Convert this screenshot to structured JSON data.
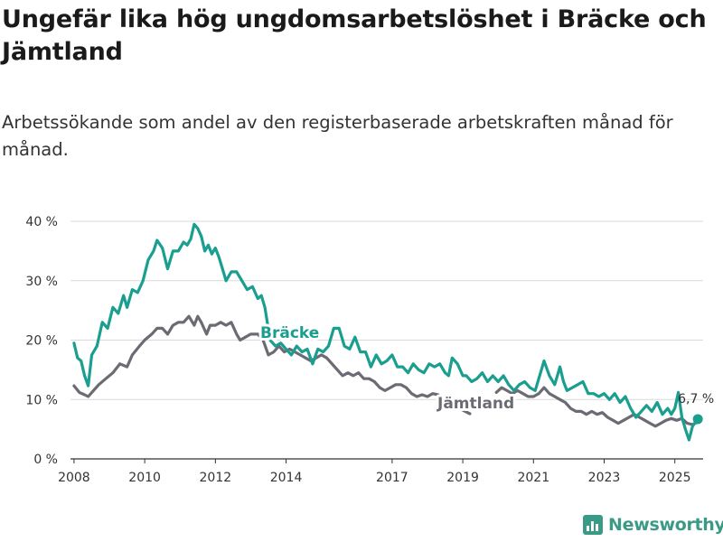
{
  "title": "Ungefär lika hög ungdomsarbetslöshet i Bräcke och Jämtland",
  "subtitle": "Arbetssökande som andel av den registerbaserade arbetskraften månad för månad.",
  "brand": "Newsworthy",
  "colors": {
    "bracke": "#1a9e8f",
    "jamtland": "#6b6b73",
    "grid": "#d9d9d9",
    "axis": "#333333"
  },
  "chart_data": {
    "type": "line",
    "ylim": [
      0,
      40
    ],
    "xlim": [
      2007.9,
      2025.8
    ],
    "y_ticks": [
      0,
      10,
      20,
      30,
      40
    ],
    "y_tick_labels": [
      "0 %",
      "10 %",
      "20 %",
      "30 %",
      "40 %"
    ],
    "x_ticks": [
      2008,
      2010,
      2012,
      2014,
      2017,
      2019,
      2021,
      2023,
      2025
    ],
    "x_tick_labels": [
      "2008",
      "2010",
      "2012",
      "2014",
      "2017",
      "2019",
      "2021",
      "2023",
      "2025"
    ],
    "series": [
      {
        "name": "Bräcke",
        "label": "Bräcke",
        "end_label": "6,7 %",
        "points": [
          [
            2008.0,
            19.5
          ],
          [
            2008.1,
            17
          ],
          [
            2008.2,
            16.5
          ],
          [
            2008.3,
            14
          ],
          [
            2008.4,
            12.3
          ],
          [
            2008.5,
            17.5
          ],
          [
            2008.65,
            19
          ],
          [
            2008.8,
            23
          ],
          [
            2008.95,
            22
          ],
          [
            2009.1,
            25.5
          ],
          [
            2009.25,
            24.5
          ],
          [
            2009.4,
            27.5
          ],
          [
            2009.5,
            25.5
          ],
          [
            2009.65,
            28.5
          ],
          [
            2009.8,
            28
          ],
          [
            2009.95,
            30
          ],
          [
            2010.1,
            33.5
          ],
          [
            2010.25,
            35
          ],
          [
            2010.35,
            36.8
          ],
          [
            2010.5,
            35.5
          ],
          [
            2010.65,
            32
          ],
          [
            2010.8,
            35
          ],
          [
            2010.95,
            35
          ],
          [
            2011.1,
            36.5
          ],
          [
            2011.2,
            36
          ],
          [
            2011.3,
            37
          ],
          [
            2011.4,
            39.5
          ],
          [
            2011.5,
            38.8
          ],
          [
            2011.6,
            37.5
          ],
          [
            2011.7,
            35
          ],
          [
            2011.8,
            36
          ],
          [
            2011.9,
            34.5
          ],
          [
            2012.0,
            35.5
          ],
          [
            2012.1,
            34
          ],
          [
            2012.2,
            32
          ],
          [
            2012.3,
            30
          ],
          [
            2012.45,
            31.5
          ],
          [
            2012.6,
            31.5
          ],
          [
            2012.75,
            30
          ],
          [
            2012.9,
            28.5
          ],
          [
            2013.05,
            29
          ],
          [
            2013.2,
            27
          ],
          [
            2013.3,
            27.5
          ],
          [
            2013.4,
            25.5
          ],
          [
            2013.55,
            20
          ],
          [
            2013.7,
            19
          ],
          [
            2013.85,
            19.5
          ],
          [
            2014.0,
            18.5
          ],
          [
            2014.15,
            17.5
          ],
          [
            2014.3,
            19
          ],
          [
            2014.45,
            18
          ],
          [
            2014.6,
            18.5
          ],
          [
            2014.75,
            16
          ],
          [
            2014.9,
            18.5
          ],
          [
            2015.05,
            18
          ],
          [
            2015.2,
            19
          ],
          [
            2015.35,
            22
          ],
          [
            2015.5,
            22
          ],
          [
            2015.65,
            19
          ],
          [
            2015.8,
            18.5
          ],
          [
            2015.95,
            20.5
          ],
          [
            2016.1,
            18
          ],
          [
            2016.25,
            18
          ],
          [
            2016.4,
            15.5
          ],
          [
            2016.55,
            17.5
          ],
          [
            2016.7,
            16
          ],
          [
            2016.85,
            16.5
          ],
          [
            2017.0,
            17.5
          ],
          [
            2017.15,
            15.5
          ],
          [
            2017.3,
            15.5
          ],
          [
            2017.45,
            14.5
          ],
          [
            2017.6,
            16
          ],
          [
            2017.75,
            15
          ],
          [
            2017.9,
            14.5
          ],
          [
            2018.05,
            16
          ],
          [
            2018.2,
            15.5
          ],
          [
            2018.35,
            16
          ],
          [
            2018.5,
            14.5
          ],
          [
            2018.6,
            14
          ],
          [
            2018.7,
            17
          ],
          [
            2018.85,
            16
          ],
          [
            2019.0,
            14
          ],
          [
            2019.1,
            14
          ],
          [
            2019.25,
            13
          ],
          [
            2019.4,
            13.5
          ],
          [
            2019.55,
            14.5
          ],
          [
            2019.7,
            13
          ],
          [
            2019.85,
            14
          ],
          [
            2020.0,
            13
          ],
          [
            2020.15,
            14
          ],
          [
            2020.3,
            12.5
          ],
          [
            2020.45,
            11.5
          ],
          [
            2020.6,
            12.5
          ],
          [
            2020.75,
            13
          ],
          [
            2020.9,
            12
          ],
          [
            2021.05,
            11.5
          ],
          [
            2021.2,
            14.5
          ],
          [
            2021.3,
            16.5
          ],
          [
            2021.45,
            14
          ],
          [
            2021.6,
            12.5
          ],
          [
            2021.75,
            15.5
          ],
          [
            2021.85,
            13
          ],
          [
            2021.95,
            11.5
          ],
          [
            2022.1,
            12
          ],
          [
            2022.25,
            12.5
          ],
          [
            2022.4,
            13
          ],
          [
            2022.55,
            11
          ],
          [
            2022.7,
            11
          ],
          [
            2022.85,
            10.5
          ],
          [
            2023.0,
            11
          ],
          [
            2023.15,
            10
          ],
          [
            2023.3,
            11
          ],
          [
            2023.45,
            9.5
          ],
          [
            2023.6,
            10.5
          ],
          [
            2023.75,
            8.5
          ],
          [
            2023.9,
            7
          ],
          [
            2024.05,
            8
          ],
          [
            2024.2,
            9
          ],
          [
            2024.35,
            8
          ],
          [
            2024.5,
            9.5
          ],
          [
            2024.65,
            7.5
          ],
          [
            2024.8,
            8.5
          ],
          [
            2024.9,
            7.5
          ],
          [
            2025.0,
            8.5
          ],
          [
            2025.1,
            11.2
          ],
          [
            2025.2,
            7
          ],
          [
            2025.3,
            5
          ],
          [
            2025.4,
            3.2
          ],
          [
            2025.5,
            5.5
          ],
          [
            2025.65,
            6.7
          ]
        ]
      },
      {
        "name": "Jämtland",
        "label": "Jämtland",
        "points": [
          [
            2008.0,
            12.3
          ],
          [
            2008.15,
            11.2
          ],
          [
            2008.3,
            10.8
          ],
          [
            2008.4,
            10.5
          ],
          [
            2008.55,
            11.5
          ],
          [
            2008.7,
            12.5
          ],
          [
            2008.9,
            13.5
          ],
          [
            2009.1,
            14.5
          ],
          [
            2009.3,
            16
          ],
          [
            2009.5,
            15.5
          ],
          [
            2009.65,
            17.5
          ],
          [
            2009.85,
            19
          ],
          [
            2010.0,
            20
          ],
          [
            2010.2,
            21
          ],
          [
            2010.35,
            22
          ],
          [
            2010.5,
            22
          ],
          [
            2010.65,
            21
          ],
          [
            2010.8,
            22.5
          ],
          [
            2010.95,
            23
          ],
          [
            2011.1,
            23
          ],
          [
            2011.25,
            24
          ],
          [
            2011.4,
            22.5
          ],
          [
            2011.5,
            24
          ],
          [
            2011.6,
            23
          ],
          [
            2011.75,
            21
          ],
          [
            2011.85,
            22.5
          ],
          [
            2012.0,
            22.5
          ],
          [
            2012.15,
            23
          ],
          [
            2012.3,
            22.5
          ],
          [
            2012.45,
            23
          ],
          [
            2012.6,
            21
          ],
          [
            2012.7,
            20
          ],
          [
            2012.85,
            20.5
          ],
          [
            2013.0,
            21
          ],
          [
            2013.2,
            21
          ],
          [
            2013.35,
            20
          ],
          [
            2013.5,
            17.5
          ],
          [
            2013.65,
            18
          ],
          [
            2013.8,
            19
          ],
          [
            2013.95,
            18
          ],
          [
            2014.1,
            18.5
          ],
          [
            2014.25,
            18
          ],
          [
            2014.4,
            17.5
          ],
          [
            2014.55,
            17
          ],
          [
            2014.7,
            16.5
          ],
          [
            2014.85,
            17
          ],
          [
            2015.0,
            17.5
          ],
          [
            2015.15,
            17
          ],
          [
            2015.3,
            16
          ],
          [
            2015.45,
            15
          ],
          [
            2015.6,
            14
          ],
          [
            2015.75,
            14.5
          ],
          [
            2015.9,
            14
          ],
          [
            2016.05,
            14.5
          ],
          [
            2016.2,
            13.5
          ],
          [
            2016.35,
            13.5
          ],
          [
            2016.5,
            13
          ],
          [
            2016.65,
            12
          ],
          [
            2016.8,
            11.5
          ],
          [
            2016.95,
            12
          ],
          [
            2017.1,
            12.5
          ],
          [
            2017.25,
            12.5
          ],
          [
            2017.4,
            12
          ],
          [
            2017.55,
            11
          ],
          [
            2017.7,
            10.5
          ],
          [
            2017.85,
            10.8
          ],
          [
            2018.0,
            10.5
          ],
          [
            2018.15,
            11
          ],
          [
            2018.3,
            10.8
          ],
          [
            2018.45,
            10
          ],
          [
            2018.6,
            9.5
          ],
          [
            2018.75,
            9.2
          ]
        ]
      },
      {
        "name": "Jämtland (2019)",
        "points": [
          [
            2019.0,
            8.2
          ],
          [
            2019.1,
            7.9
          ],
          [
            2019.2,
            7.6
          ]
        ]
      },
      {
        "name": "Jämtland (2020–2025)",
        "points": [
          [
            2019.95,
            11.2
          ],
          [
            2020.1,
            12
          ],
          [
            2020.25,
            11.5
          ],
          [
            2020.4,
            11
          ],
          [
            2020.55,
            11.5
          ],
          [
            2020.7,
            11
          ],
          [
            2020.85,
            10.5
          ],
          [
            2021.0,
            10.5
          ],
          [
            2021.15,
            11
          ],
          [
            2021.3,
            12
          ],
          [
            2021.45,
            11
          ],
          [
            2021.6,
            10.5
          ],
          [
            2021.75,
            10
          ],
          [
            2021.9,
            9.5
          ],
          [
            2022.05,
            8.5
          ],
          [
            2022.2,
            8
          ],
          [
            2022.35,
            8
          ],
          [
            2022.5,
            7.5
          ],
          [
            2022.65,
            8
          ],
          [
            2022.8,
            7.5
          ],
          [
            2022.95,
            7.8
          ],
          [
            2023.1,
            7
          ],
          [
            2023.25,
            6.5
          ],
          [
            2023.4,
            6
          ],
          [
            2023.55,
            6.5
          ],
          [
            2023.7,
            7
          ],
          [
            2023.85,
            7.5
          ],
          [
            2024.0,
            7
          ],
          [
            2024.15,
            6.5
          ],
          [
            2024.3,
            6
          ],
          [
            2024.45,
            5.5
          ],
          [
            2024.6,
            6
          ],
          [
            2024.75,
            6.5
          ],
          [
            2024.9,
            6.8
          ],
          [
            2025.05,
            6.5
          ],
          [
            2025.2,
            6.8
          ],
          [
            2025.35,
            6
          ],
          [
            2025.5,
            5.8
          ],
          [
            2025.65,
            6.2
          ]
        ]
      }
    ]
  }
}
